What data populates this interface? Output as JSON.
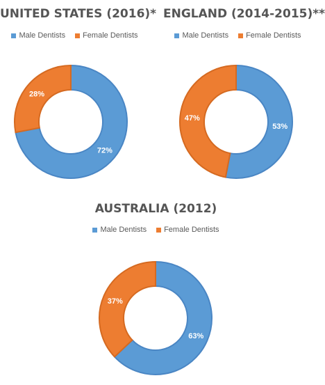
{
  "colors": {
    "male": "#5b9bd5",
    "female": "#ed7d31",
    "male_stroke": "#4a86c4",
    "female_stroke": "#d56a21"
  },
  "chart_data": [
    {
      "type": "pie",
      "title": "UNITED STATES (2016)*",
      "categories": [
        "Male Dentists",
        "Female Dentists"
      ],
      "values": [
        72,
        28
      ],
      "labels": [
        "72%",
        "28%"
      ],
      "legend": "top"
    },
    {
      "type": "pie",
      "title": "ENGLAND (2014-2015)**",
      "categories": [
        "Male Dentists",
        "Female Dentists"
      ],
      "values": [
        53,
        47
      ],
      "labels": [
        "53%",
        "47%"
      ],
      "legend": "top"
    },
    {
      "type": "pie",
      "title": "AUSTRALIA (2012)",
      "categories": [
        "Male Dentists",
        "Female Dentists"
      ],
      "values": [
        63,
        37
      ],
      "labels": [
        "63%",
        "37%"
      ],
      "legend": "top"
    }
  ]
}
